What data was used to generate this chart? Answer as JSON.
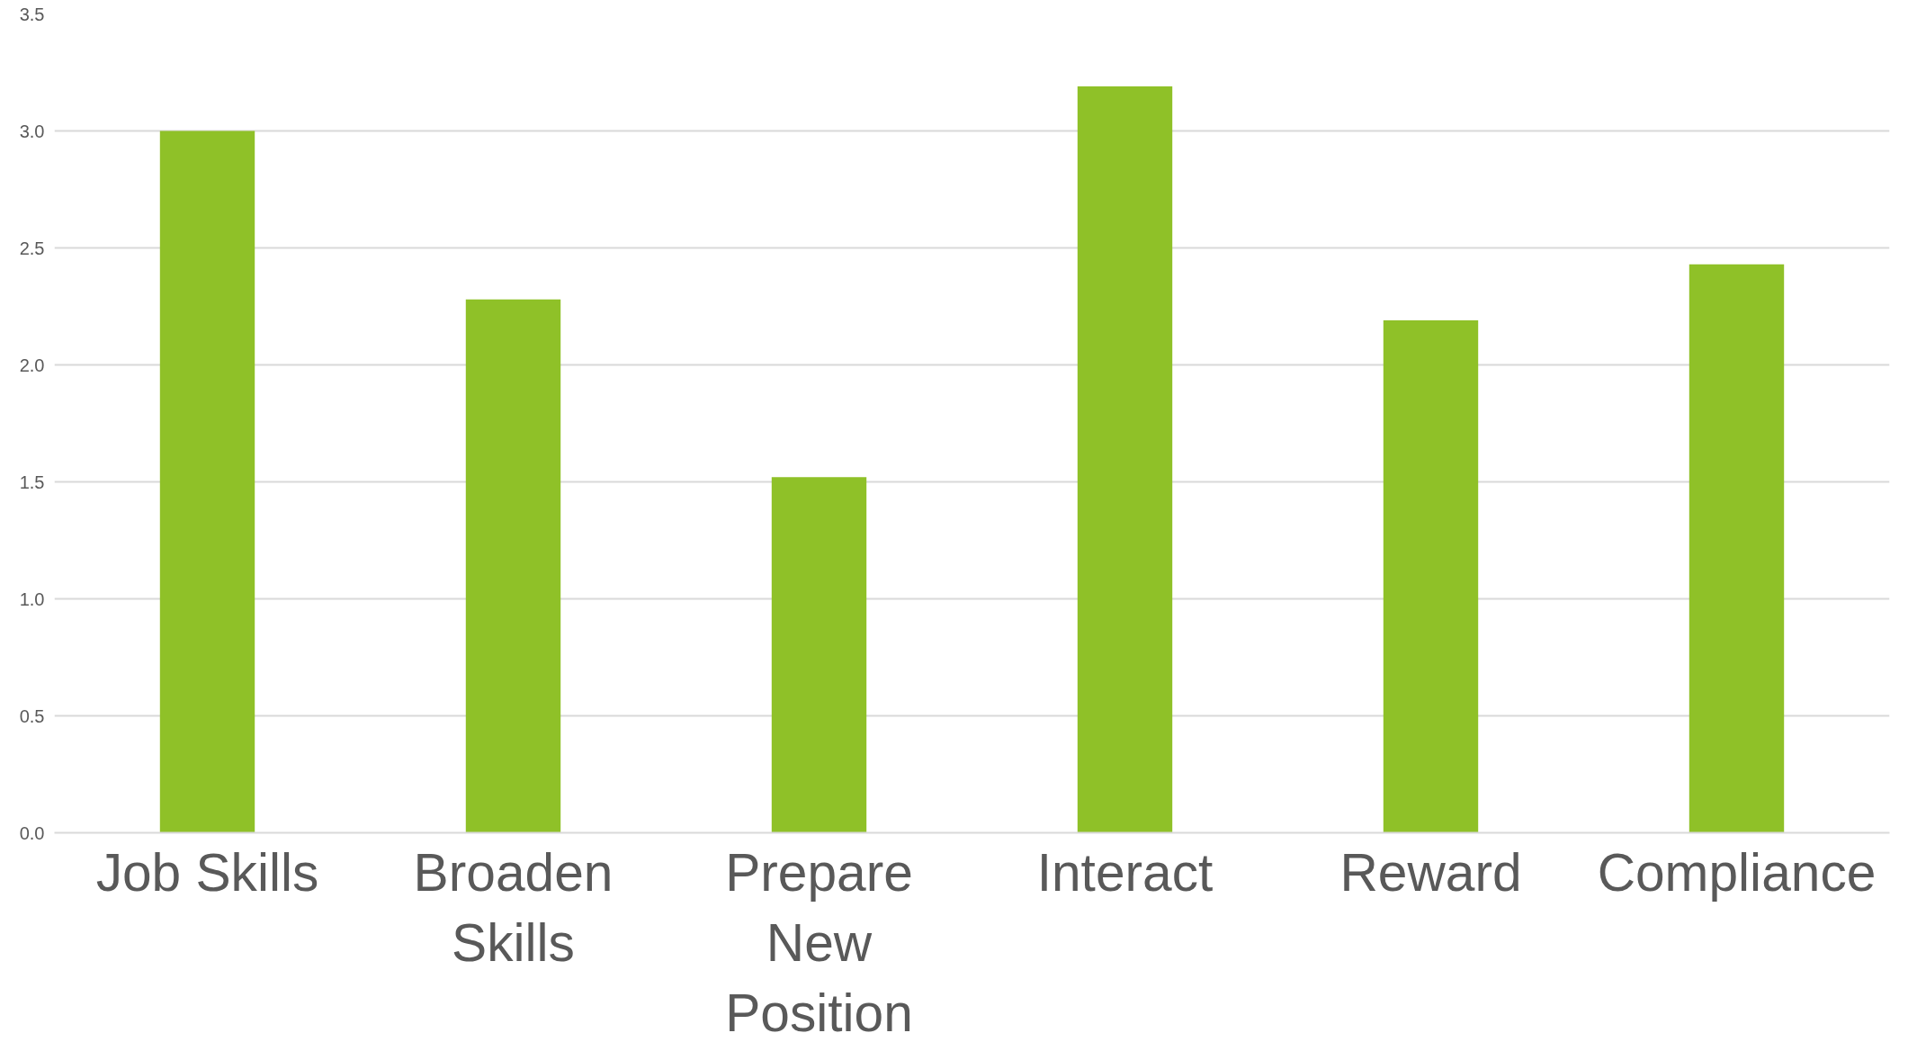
{
  "chart_data": {
    "type": "bar",
    "categories": [
      "Job Skills",
      "Broaden Skills",
      "Prepare New Position",
      "Interact",
      "Reward",
      "Compliance"
    ],
    "values": [
      3.0,
      2.28,
      1.52,
      3.19,
      2.19,
      2.43
    ],
    "color": "#8fc128",
    "ylim": [
      0,
      3.5
    ],
    "yticks": [
      {
        "value": 0,
        "label": "0.0"
      },
      {
        "value": 0.5,
        "label": "0.5"
      },
      {
        "value": 1,
        "label": "1.0"
      },
      {
        "value": 1.5,
        "label": "1.5"
      },
      {
        "value": 2,
        "label": "2.0"
      },
      {
        "value": 2.5,
        "label": "2.5"
      },
      {
        "value": 3,
        "label": "3.0"
      },
      {
        "value": 3.5,
        "label": "3.5"
      }
    ],
    "grid": "y"
  }
}
